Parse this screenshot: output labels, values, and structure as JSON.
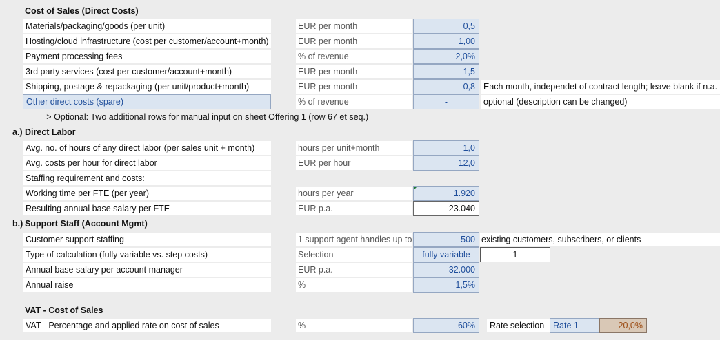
{
  "cost_of_sales": {
    "title": "Cost of Sales (Direct Costs)",
    "rows": [
      {
        "label": "Materials/packaging/goods (per unit)",
        "unit": "EUR per month",
        "value": "0,5"
      },
      {
        "label": "Hosting/cloud infrastructure (cost per customer/account+month)",
        "unit": "EUR per month",
        "value": "1,00"
      },
      {
        "label": "Payment processing fees",
        "unit": "% of revenue",
        "value": "2,0%"
      },
      {
        "label": "3rd party services (cost per customer/account+month)",
        "unit": "EUR per month",
        "value": "1,5"
      },
      {
        "label": "Shipping, postage & repackaging (per unit/product+month)",
        "unit": "EUR per month",
        "value": "0,8",
        "note": "Each month, independet of contract length; leave blank if n.a."
      },
      {
        "label": "Other direct costs (spare)",
        "unit": "% of revenue",
        "value": "-",
        "note": "optional (description can be changed)"
      }
    ],
    "optional_note": "=> Optional: Two additional rows for manual input on sheet Offering 1 (row 67 et seq.)"
  },
  "direct_labor": {
    "prefix": "a.)",
    "title": "Direct Labor",
    "rows": [
      {
        "label": "Avg. no. of hours of any direct labor (per sales unit + month)",
        "unit": "hours per unit+month",
        "value": "1,0"
      },
      {
        "label": "Avg. costs per hour for direct labor",
        "unit": "EUR per hour",
        "value": "12,0"
      }
    ],
    "staffing_label": "Staffing requirement and costs:",
    "working_time": {
      "label": "Working time per FTE (per year)",
      "unit": "hours per year",
      "value": "1.920"
    },
    "salary": {
      "label": "Resulting annual base salary per FTE",
      "unit": "EUR p.a.",
      "value": "23.040"
    }
  },
  "support_staff": {
    "prefix": "b.)",
    "title": "Support Staff (Account Mgmt)",
    "staffing": {
      "label": "Customer support staffing",
      "unit": "1 support agent handles up to",
      "value": "500",
      "note": "existing customers, subscribers, or clients"
    },
    "calc_type": {
      "label": "Type of calculation (fully variable vs. step costs)",
      "unit": "Selection",
      "value": "fully variable",
      "extra": "1"
    },
    "salary": {
      "label": "Annual base salary per account manager",
      "unit": "EUR p.a.",
      "value": "32.000"
    },
    "raise": {
      "label": "Annual raise",
      "unit": "%",
      "value": "1,5%"
    }
  },
  "vat": {
    "title": "VAT - Cost of Sales",
    "row": {
      "label": "VAT - Percentage and applied rate on cost of sales",
      "unit": "%",
      "value": "60%"
    },
    "rate_selection_label": "Rate selection",
    "rate_name": "Rate 1",
    "rate_value": "20,0%"
  }
}
